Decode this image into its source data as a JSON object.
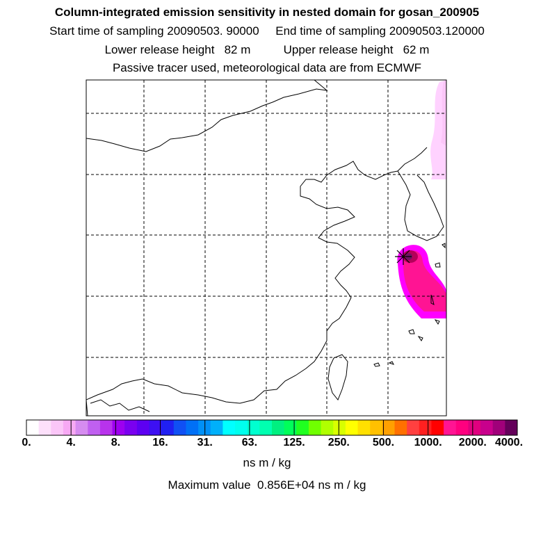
{
  "header": {
    "title": "Column-integrated emission sensitivity in nested domain for gosan_200905",
    "sampling": "Start time of sampling 20090503. 90000     End time of sampling 20090503.120000",
    "release": "Lower release height   82 m          Upper release height   62 m",
    "tracer": "Passive tracer used, meteorological data are from ECMWF"
  },
  "map": {
    "release_site": "Gosan",
    "plume_colors": [
      "#ffd2ff",
      "#ff00ff",
      "#ff1493",
      "#b4005a",
      "#6e1464"
    ]
  },
  "colorbar": {
    "colors": [
      "#ffffff",
      "#fde0fb",
      "#fbc6f8",
      "#f7a9f4",
      "#d68cf0",
      "#c060f0",
      "#b833ec",
      "#9d00f0",
      "#7a00f0",
      "#5d00f2",
      "#3d10f2",
      "#2020f2",
      "#1050f4",
      "#0070f6",
      "#0090f8",
      "#00b0fa",
      "#00ffff",
      "#00ffee",
      "#00ffd0",
      "#00ffb0",
      "#00f080",
      "#00ff5a",
      "#20ff20",
      "#70ff00",
      "#b0ff00",
      "#d8ff00",
      "#ffff00",
      "#ffe000",
      "#ffc000",
      "#ffa000",
      "#ff7000",
      "#ff4040",
      "#ff2020",
      "#ff0000",
      "#ff1493",
      "#ff007f",
      "#e0007f",
      "#c8008c",
      "#a0007a",
      "#64005a"
    ],
    "tick_labels": [
      "0.",
      "4.",
      "8.",
      "16.",
      "31.",
      "63.",
      "125.",
      "250.",
      "500.",
      "1000.",
      "2000.",
      "4000."
    ],
    "unit": "ns m / kg"
  },
  "footer": {
    "max_value": "Maximum value  0.856E+04 ns m / kg"
  }
}
